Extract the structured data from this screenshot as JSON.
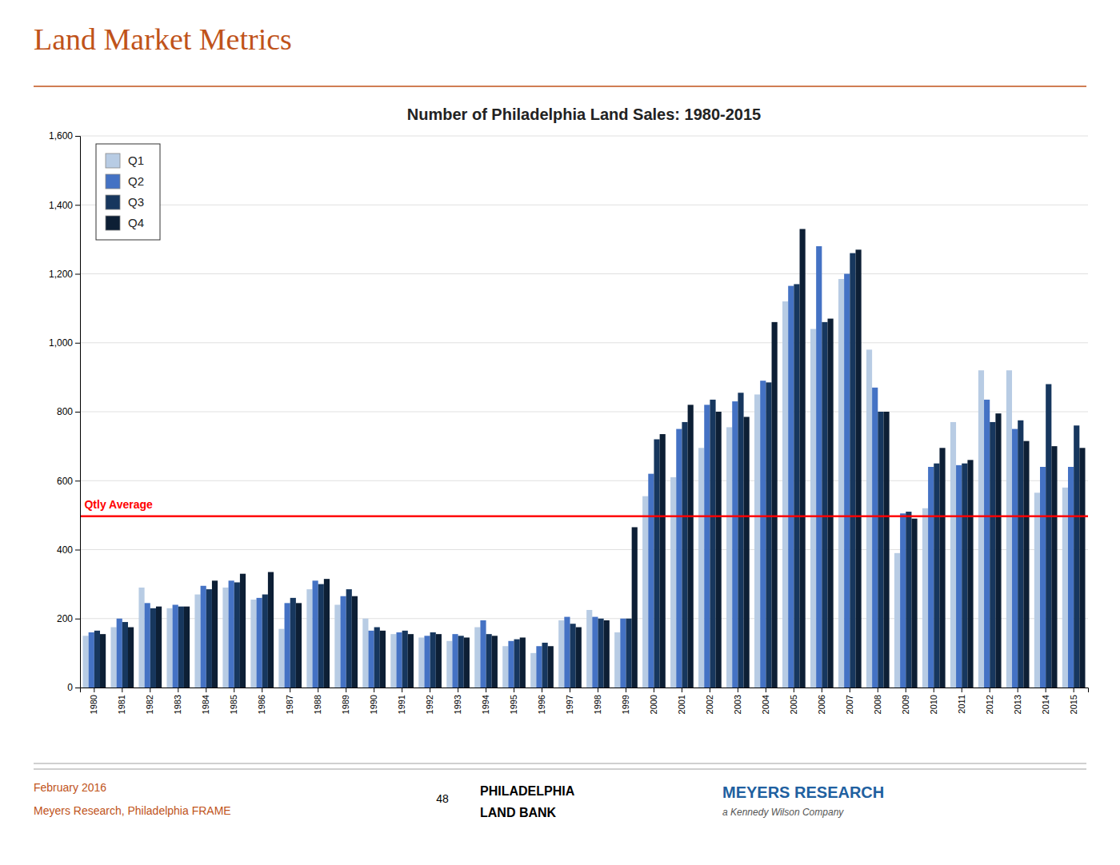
{
  "page": {
    "title": "Land Market Metrics",
    "color": "#c0531a",
    "footer": [
      "February 2016",
      "Meyers Research, Philadelphia FRAME",
      "48",
      "PHILADELPHIA",
      "LAND BANK",
      "MEYERS RESEARCH",
      "a Kennedy Wilson Company"
    ]
  },
  "chart_data": {
    "type": "bar",
    "title": "Number of Philadelphia Land Sales: 1980-2015",
    "categories": [
      "1980",
      "1981",
      "1982",
      "1983",
      "1984",
      "1985",
      "1986",
      "1987",
      "1988",
      "1989",
      "1990",
      "1991",
      "1992",
      "1993",
      "1994",
      "1995",
      "1996",
      "1997",
      "1998",
      "1999",
      "2000",
      "2001",
      "2002",
      "2003",
      "2004",
      "2005",
      "2006",
      "2007",
      "2008",
      "2009",
      "2010",
      "2011",
      "2012",
      "2013",
      "2014",
      "2015"
    ],
    "series": [
      {
        "name": "Q1",
        "color": "#b8cce4",
        "values": [
          150,
          175,
          290,
          230,
          270,
          290,
          255,
          170,
          285,
          240,
          200,
          155,
          145,
          135,
          175,
          120,
          100,
          195,
          225,
          160,
          555,
          610,
          695,
          755,
          850,
          1120,
          1040,
          1185,
          980,
          390,
          520,
          770,
          920,
          920,
          565,
          580
        ]
      },
      {
        "name": "Q2",
        "color": "#4472c4",
        "values": [
          160,
          200,
          245,
          240,
          295,
          310,
          260,
          245,
          310,
          265,
          165,
          160,
          150,
          155,
          195,
          135,
          120,
          205,
          205,
          200,
          620,
          750,
          820,
          830,
          890,
          1165,
          1280,
          1200,
          870,
          505,
          640,
          645,
          835,
          750,
          640,
          640
        ]
      },
      {
        "name": "Q3",
        "color": "#17375e",
        "values": [
          165,
          190,
          230,
          235,
          285,
          305,
          270,
          260,
          300,
          285,
          175,
          165,
          160,
          150,
          155,
          140,
          130,
          185,
          200,
          200,
          720,
          770,
          835,
          855,
          885,
          1170,
          1060,
          1260,
          800,
          510,
          650,
          650,
          770,
          775,
          880,
          760
        ]
      },
      {
        "name": "Q4",
        "color": "#0d1f35",
        "values": [
          155,
          175,
          235,
          235,
          310,
          330,
          335,
          245,
          315,
          265,
          165,
          155,
          155,
          145,
          150,
          145,
          120,
          175,
          195,
          465,
          735,
          820,
          800,
          785,
          1060,
          1330,
          1070,
          1270,
          800,
          490,
          695,
          660,
          795,
          715,
          700,
          695
        ]
      }
    ],
    "annotations": [
      {
        "label": "Qtly Average",
        "value": 497,
        "color": "#ff0000"
      }
    ],
    "ylim": [
      0,
      1600
    ],
    "yticks": [
      0,
      200,
      400,
      600,
      800,
      {
        "value": 1000,
        "label": "1,000"
      },
      {
        "value": 1200,
        "label": "1,200"
      },
      {
        "value": 1400,
        "label": "1,400"
      },
      {
        "value": 1600,
        "label": "1,600"
      }
    ],
    "grid": true,
    "legend": "upper left"
  }
}
